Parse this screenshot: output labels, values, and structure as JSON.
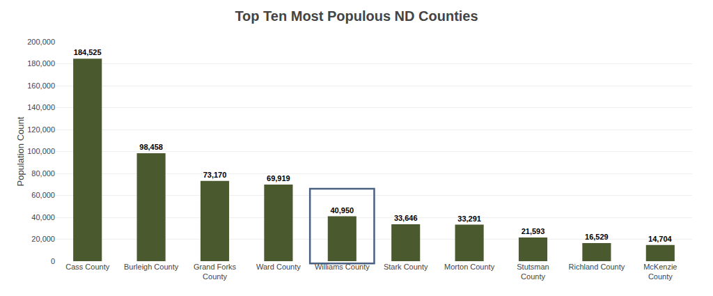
{
  "chart_data": {
    "type": "bar",
    "title": "Top Ten Most Populous ND Counties",
    "ylabel": "Population Count",
    "categories": [
      "Cass County",
      "Burleigh County",
      "Grand Forks\nCounty",
      "Ward County",
      "Williams County",
      "Stark County",
      "Morton County",
      "Stutsman\nCounty",
      "Richland County",
      "McKenzie\nCounty"
    ],
    "values": [
      184525,
      98458,
      73170,
      69919,
      40950,
      33646,
      33291,
      21593,
      16529,
      14704
    ],
    "value_labels": [
      "184,525",
      "98,458",
      "73,170",
      "69,919",
      "40,950",
      "33,646",
      "33,291",
      "21,593",
      "16,529",
      "14,704"
    ],
    "data_labels": true,
    "color": "#4a5a2e",
    "ylim": [
      0,
      200000
    ],
    "yticks": [
      0,
      {
        "value": 20000,
        "label": "20,000"
      },
      {
        "value": 40000,
        "label": "40,000"
      },
      {
        "value": 60000,
        "label": "60,000"
      },
      {
        "value": 80000,
        "label": "80,000"
      },
      {
        "value": 100000,
        "label": "100,000"
      },
      {
        "value": 120000,
        "label": "120,000"
      },
      {
        "value": 140000,
        "label": "140,000"
      },
      {
        "value": 160000,
        "label": "160,000"
      },
      {
        "value": 180000,
        "label": "180,000"
      },
      {
        "value": 200000,
        "label": "200,000"
      }
    ],
    "grid": true
  }
}
